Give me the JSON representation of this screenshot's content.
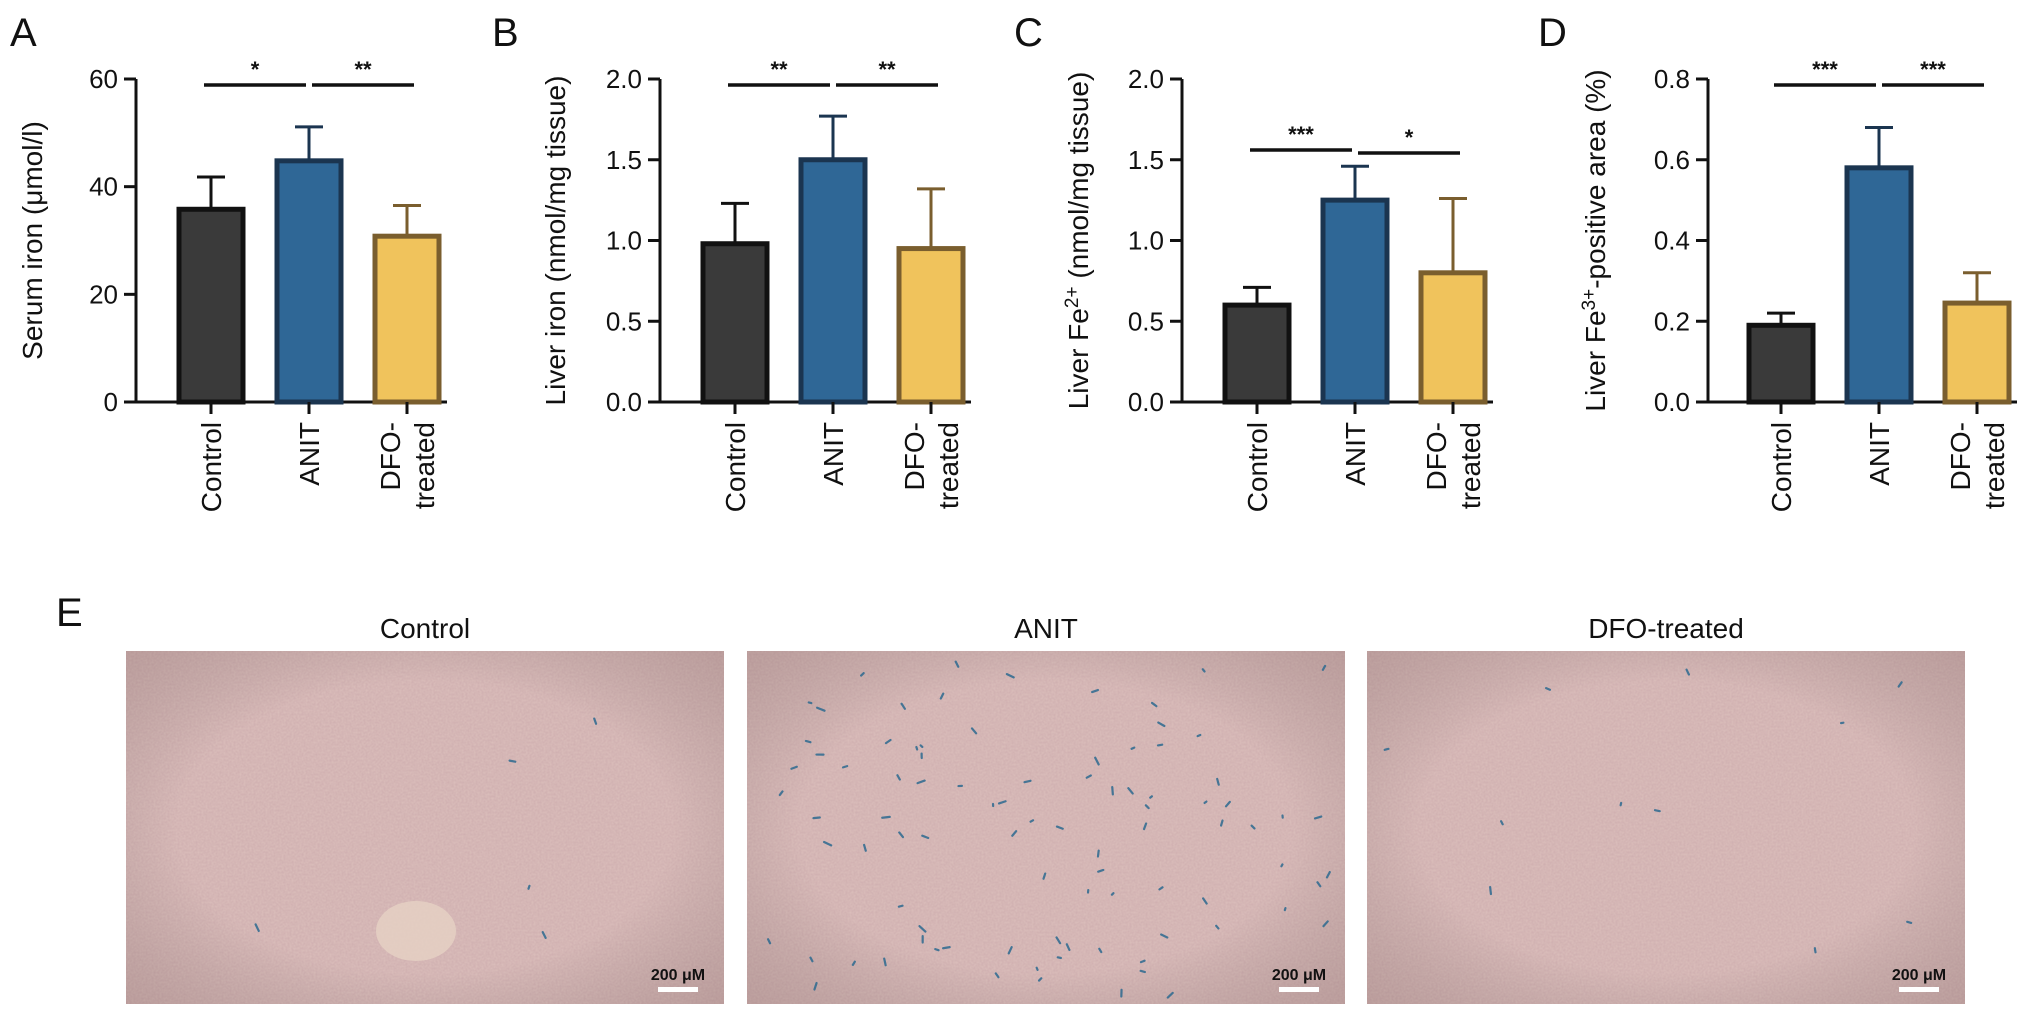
{
  "colors": {
    "control": "#3a3a3a",
    "control_edge": "#111111",
    "anit": "#2f6796",
    "anit_edge": "#1b3550",
    "dfo": "#f0c35c",
    "dfo_edge": "#7a5e2e",
    "tissue": "#dcc0bc",
    "stain": "#2d6a90"
  },
  "chart_data": [
    {
      "type": "bar",
      "panel": "A",
      "ylabel": "Serum iron (μmol/l)",
      "ylim": [
        0,
        60
      ],
      "yticks": [
        0,
        20,
        40,
        60
      ],
      "ytick_labels": [
        "0",
        "20",
        "40",
        "60"
      ],
      "categories": [
        "Control",
        "ANIT",
        "DFO-\ntreated"
      ],
      "values": [
        35.8,
        44.8,
        30.8
      ],
      "errors": [
        6.0,
        6.3,
        5.7
      ],
      "significance": [
        {
          "from": 0,
          "to": 1,
          "label": "*"
        },
        {
          "from": 1,
          "to": 2,
          "label": "**"
        }
      ]
    },
    {
      "type": "bar",
      "panel": "B",
      "ylabel": "Liver iron (nmol/mg tissue)",
      "ylim": [
        0,
        2.0
      ],
      "yticks": [
        0,
        0.5,
        1.0,
        1.5,
        2.0
      ],
      "ytick_labels": [
        "0.0",
        "0.5",
        "1.0",
        "1.5",
        "2.0"
      ],
      "categories": [
        "Control",
        "ANIT",
        "DFO-\ntreated"
      ],
      "values": [
        0.98,
        1.5,
        0.95
      ],
      "errors": [
        0.25,
        0.27,
        0.37
      ],
      "significance": [
        {
          "from": 0,
          "to": 1,
          "label": "**"
        },
        {
          "from": 1,
          "to": 2,
          "label": "**"
        }
      ]
    },
    {
      "type": "bar",
      "panel": "C",
      "ylabel": "Liver Fe2+ (nmol/mg tissue)",
      "ylabel_parts": [
        {
          "text": "Liver Fe",
          "sup": false
        },
        {
          "text": "2+",
          "sup": true
        },
        {
          "text": " (nmol/mg tissue)",
          "sup": false
        }
      ],
      "ylim": [
        0,
        2.0
      ],
      "yticks": [
        0,
        0.5,
        1.0,
        1.5,
        2.0
      ],
      "ytick_labels": [
        "0.0",
        "0.5",
        "1.0",
        "1.5",
        "2.0"
      ],
      "categories": [
        "Control",
        "ANIT",
        "DFO-\ntreated"
      ],
      "values": [
        0.6,
        1.25,
        0.8
      ],
      "errors": [
        0.11,
        0.21,
        0.46
      ],
      "significance": [
        {
          "from": 0,
          "to": 1,
          "label": "***"
        },
        {
          "from": 1,
          "to": 2,
          "label": "*"
        }
      ]
    },
    {
      "type": "bar",
      "panel": "D",
      "ylabel": "Liver Fe3+-positive area (%)",
      "ylabel_parts": [
        {
          "text": "Liver Fe",
          "sup": false
        },
        {
          "text": "3+",
          "sup": true
        },
        {
          "text": "-positive area (%)",
          "sup": false
        }
      ],
      "ylim": [
        0,
        0.8
      ],
      "yticks": [
        0,
        0.2,
        0.4,
        0.6,
        0.8
      ],
      "ytick_labels": [
        "0.0",
        "0.2",
        "0.4",
        "0.6",
        "0.8"
      ],
      "categories": [
        "Control",
        "ANIT",
        "DFO-\ntreated"
      ],
      "values": [
        0.19,
        0.58,
        0.245
      ],
      "errors": [
        0.03,
        0.1,
        0.075
      ],
      "significance": [
        {
          "from": 0,
          "to": 1,
          "label": "***"
        },
        {
          "from": 1,
          "to": 2,
          "label": "***"
        }
      ]
    }
  ],
  "micrographs": {
    "panel": "E",
    "images": [
      {
        "title": "Control",
        "scale_bar": "200 μM",
        "stain_level": 0.05
      },
      {
        "title": "ANIT",
        "scale_bar": "200 μM",
        "stain_level": 1.0
      },
      {
        "title": "DFO-treated",
        "scale_bar": "200 μM",
        "stain_level": 0.12
      }
    ]
  }
}
